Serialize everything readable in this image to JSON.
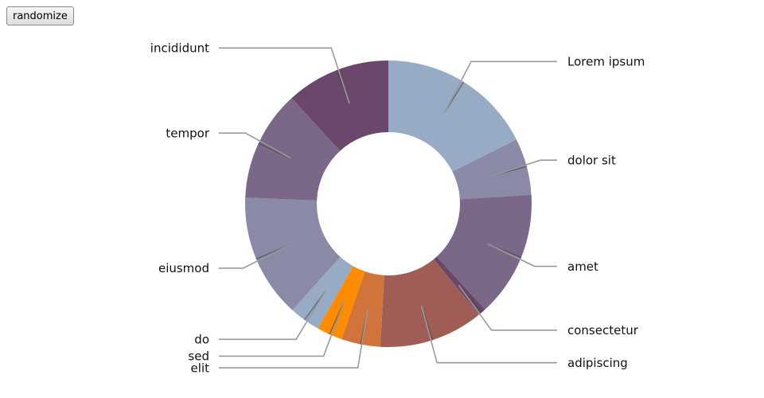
{
  "controls": {
    "randomize_label": "randomize"
  },
  "chart_data": {
    "type": "pie",
    "donut": true,
    "title": "",
    "slices": [
      {
        "label": "Lorem ipsum",
        "value": 17.6,
        "color": "#98abc5"
      },
      {
        "label": "dolor sit",
        "value": 6.4,
        "color": "#8a89a6"
      },
      {
        "label": "amet",
        "value": 14.2,
        "color": "#7b6888"
      },
      {
        "label": "consectetur",
        "value": 0.9,
        "color": "#6b486b"
      },
      {
        "label": "adipiscing",
        "value": 11.8,
        "color": "#a05d56"
      },
      {
        "label": "elit",
        "value": 4.4,
        "color": "#d0743c"
      },
      {
        "label": "sed",
        "value": 2.9,
        "color": "#ff8c00"
      },
      {
        "label": "do",
        "value": 3.5,
        "color": "#98abc5"
      },
      {
        "label": "eiusmod",
        "value": 14.0,
        "color": "#8a89a6"
      },
      {
        "label": "tempor",
        "value": 12.5,
        "color": "#7b6888"
      },
      {
        "label": "incididunt",
        "value": 11.8,
        "color": "#6b486b"
      }
    ]
  }
}
